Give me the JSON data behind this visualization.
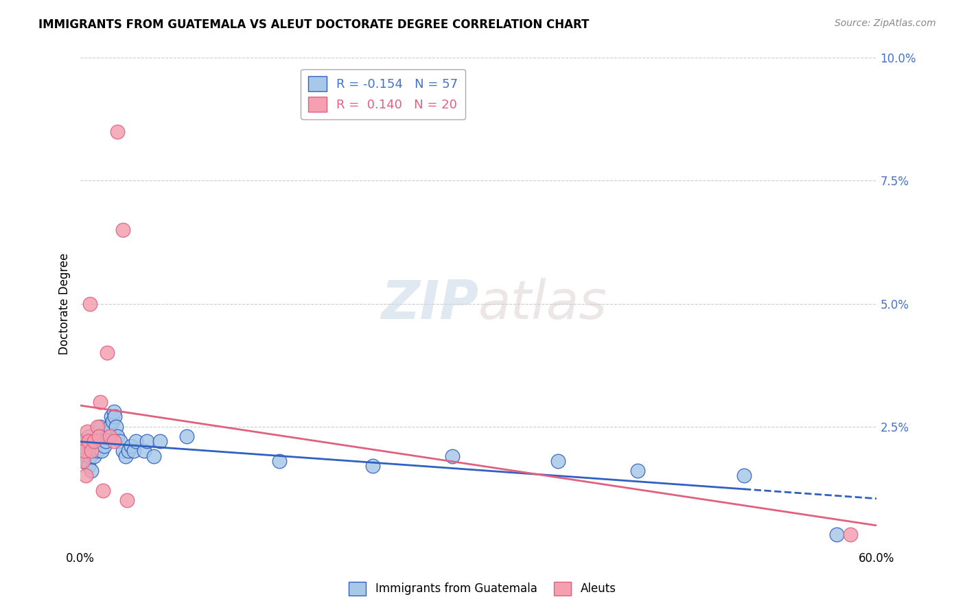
{
  "title": "IMMIGRANTS FROM GUATEMALA VS ALEUT DOCTORATE DEGREE CORRELATION CHART",
  "source": "Source: ZipAtlas.com",
  "ylabel": "Doctorate Degree",
  "xlim": [
    0.0,
    0.6
  ],
  "ylim": [
    0.0,
    0.1
  ],
  "blue_color": "#a8c8e8",
  "pink_color": "#f4a0b0",
  "blue_line_color": "#3060c0",
  "pink_line_color": "#e06080",
  "watermark_zip": "ZIP",
  "watermark_atlas": "atlas",
  "legend_line1": "R = -0.154   N = 57",
  "legend_line2": "R =  0.140   N = 20",
  "blue_scatter_x": [
    0.001,
    0.002,
    0.002,
    0.003,
    0.003,
    0.004,
    0.004,
    0.004,
    0.005,
    0.005,
    0.005,
    0.006,
    0.006,
    0.007,
    0.007,
    0.008,
    0.008,
    0.009,
    0.01,
    0.01,
    0.011,
    0.012,
    0.013,
    0.014,
    0.015,
    0.016,
    0.017,
    0.018,
    0.019,
    0.02,
    0.021,
    0.022,
    0.023,
    0.024,
    0.025,
    0.026,
    0.027,
    0.028,
    0.03,
    0.032,
    0.034,
    0.036,
    0.038,
    0.04,
    0.042,
    0.048,
    0.05,
    0.055,
    0.06,
    0.08,
    0.15,
    0.22,
    0.28,
    0.36,
    0.42,
    0.5,
    0.57
  ],
  "blue_scatter_y": [
    0.021,
    0.022,
    0.02,
    0.019,
    0.021,
    0.018,
    0.02,
    0.022,
    0.019,
    0.021,
    0.02,
    0.017,
    0.023,
    0.019,
    0.021,
    0.016,
    0.022,
    0.02,
    0.021,
    0.019,
    0.022,
    0.021,
    0.02,
    0.022,
    0.025,
    0.02,
    0.023,
    0.021,
    0.022,
    0.023,
    0.024,
    0.025,
    0.027,
    0.026,
    0.028,
    0.027,
    0.025,
    0.023,
    0.022,
    0.02,
    0.019,
    0.02,
    0.021,
    0.02,
    0.022,
    0.02,
    0.022,
    0.019,
    0.022,
    0.023,
    0.018,
    0.017,
    0.019,
    0.018,
    0.016,
    0.015,
    0.003
  ],
  "pink_scatter_x": [
    0.001,
    0.002,
    0.003,
    0.004,
    0.005,
    0.006,
    0.007,
    0.008,
    0.01,
    0.013,
    0.014,
    0.015,
    0.017,
    0.02,
    0.022,
    0.025,
    0.028,
    0.032,
    0.035,
    0.58
  ],
  "pink_scatter_y": [
    0.022,
    0.018,
    0.02,
    0.015,
    0.024,
    0.022,
    0.05,
    0.02,
    0.022,
    0.025,
    0.023,
    0.03,
    0.012,
    0.04,
    0.023,
    0.022,
    0.085,
    0.065,
    0.01,
    0.003
  ]
}
